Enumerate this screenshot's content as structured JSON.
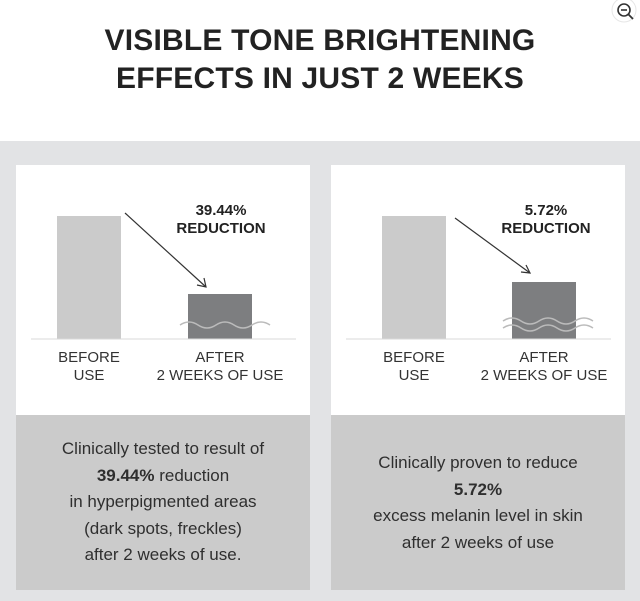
{
  "title": {
    "line1": "VISIBLE TONE BRIGHTENING",
    "line2": "EFFECTS IN JUST 2 WEEKS"
  },
  "icons": {
    "zoom_out": "zoom-out-icon"
  },
  "colors": {
    "background": "#ffffff",
    "band": "#e2e3e5",
    "card_top": "#ffffff",
    "card_bottom": "#cbcbcb",
    "bar_before": "#cbcbcb",
    "bar_after": "#7d7e80"
  },
  "panels": [
    {
      "reduction_value": "39.44%",
      "reduction_label": "REDUCTION",
      "before_line1": "BEFORE",
      "before_line2": "USE",
      "after_line1": "AFTER",
      "after_line2": "2 WEEKS OF USE",
      "desc": [
        "Clinically tested to result of",
        "39.44% reduction",
        "in hyperpigmented areas",
        "(dark spots, freckles)",
        "after 2 weeks of use."
      ],
      "desc_bold": "39.44%",
      "desc_rest": " reduction"
    },
    {
      "reduction_value": "5.72%",
      "reduction_label": "REDUCTION",
      "before_line1": "BEFORE",
      "before_line2": "USE",
      "after_line1": "AFTER",
      "after_line2": "2 WEEKS OF USE",
      "desc": [
        "Clinically proven to reduce",
        "5.72%",
        "excess melanin level in skin",
        "after 2 weeks of use"
      ]
    }
  ]
}
